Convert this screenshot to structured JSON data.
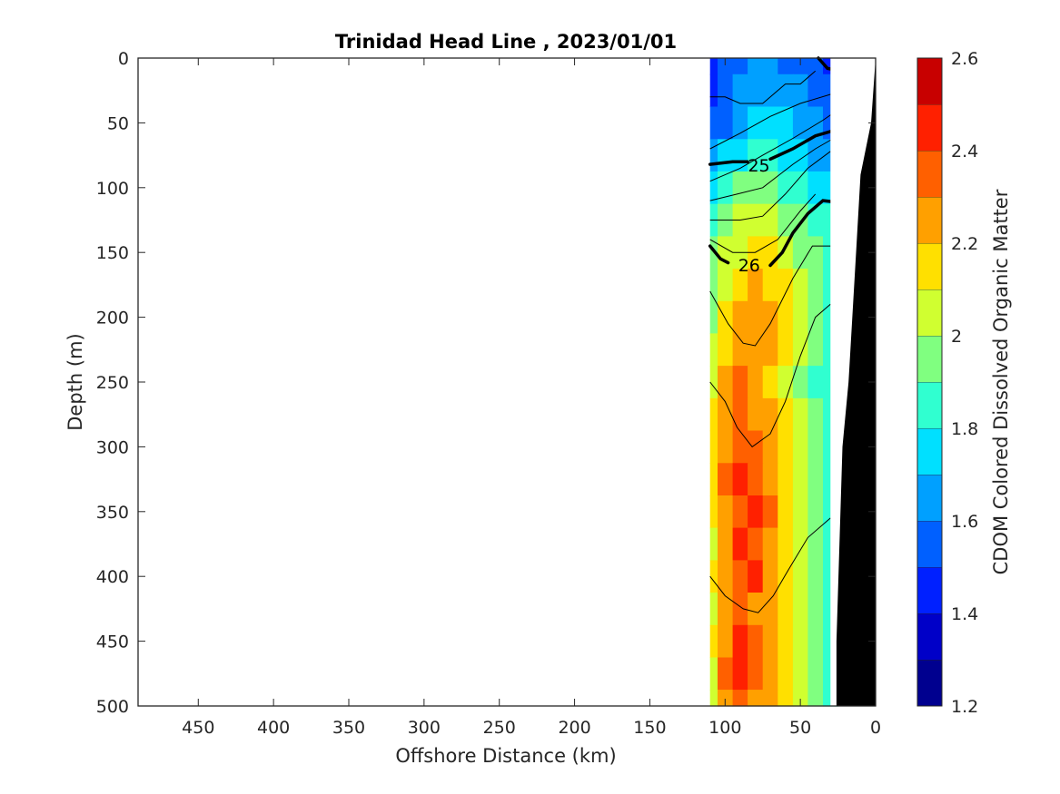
{
  "chart_data": {
    "type": "heatmap",
    "title": "Trinidad Head Line , 2023/01/01",
    "xlabel": "Offshore Distance (km)",
    "ylabel": "Depth (m)",
    "colorbar_label": "CDOM Colored Dissolved Organic Matter",
    "xlim": [
      490,
      0
    ],
    "x_reversed": true,
    "ylim": [
      0,
      500
    ],
    "y_reversed": true,
    "x_ticks": [
      "450",
      "400",
      "350",
      "300",
      "250",
      "200",
      "150",
      "100",
      "50",
      "0"
    ],
    "x_tick_values": [
      450,
      400,
      350,
      300,
      250,
      200,
      150,
      100,
      50,
      0
    ],
    "y_ticks": [
      "0",
      "50",
      "100",
      "150",
      "200",
      "250",
      "300",
      "350",
      "400",
      "450",
      "500"
    ],
    "y_tick_values": [
      0,
      50,
      100,
      150,
      200,
      250,
      300,
      350,
      400,
      450,
      500
    ],
    "colorbar_ticks": [
      "1.2",
      "1.4",
      "1.6",
      "1.8",
      "2",
      "2.2",
      "2.4",
      "2.6"
    ],
    "colorbar_tick_values": [
      1.2,
      1.4,
      1.6,
      1.8,
      2.0,
      2.2,
      2.4,
      2.6
    ],
    "clim": [
      1.2,
      2.6
    ],
    "colorbar_levels": [
      1.2,
      1.3,
      1.4,
      1.5,
      1.6,
      1.7,
      1.8,
      1.9,
      2.0,
      2.1,
      2.2,
      2.3,
      2.4,
      2.5,
      2.6
    ],
    "colormap": [
      "#00008f",
      "#0000c8",
      "#0020ff",
      "#0060ff",
      "#00a0ff",
      "#00e0ff",
      "#30ffd0",
      "#80ff80",
      "#d0ff30",
      "#ffe000",
      "#ffa000",
      "#ff6000",
      "#ff2000",
      "#c80000"
    ],
    "section_x_range": [
      110,
      20
    ],
    "distance_columns": [
      110,
      100,
      90,
      80,
      70,
      60,
      50,
      40,
      30,
      20
    ],
    "depth_rows": [
      0,
      25,
      50,
      75,
      100,
      125,
      150,
      175,
      200,
      225,
      250,
      275,
      300,
      325,
      350,
      375,
      400,
      425,
      450,
      475,
      500
    ],
    "cdom_values": [
      [
        1.45,
        1.5,
        1.55,
        1.6,
        1.62,
        1.58,
        1.55,
        1.5,
        1.45,
        1.45
      ],
      [
        1.45,
        1.52,
        1.6,
        1.65,
        1.68,
        1.65,
        1.6,
        1.55,
        1.5,
        1.45
      ],
      [
        1.5,
        1.55,
        1.62,
        1.7,
        1.72,
        1.7,
        1.65,
        1.6,
        1.55,
        1.5
      ],
      [
        1.6,
        1.7,
        1.78,
        1.82,
        1.8,
        1.78,
        1.72,
        1.68,
        1.65,
        1.6
      ],
      [
        1.75,
        1.85,
        1.92,
        1.95,
        1.92,
        1.88,
        1.82,
        1.78,
        1.75,
        1.7
      ],
      [
        1.85,
        1.95,
        2.02,
        2.05,
        2.02,
        1.98,
        1.92,
        1.85,
        1.8,
        1.75
      ],
      [
        1.9,
        2.0,
        2.08,
        2.12,
        2.1,
        2.05,
        1.98,
        1.9,
        1.82,
        null
      ],
      [
        1.95,
        2.05,
        2.15,
        2.2,
        2.18,
        2.1,
        2.0,
        1.92,
        1.85,
        null
      ],
      [
        1.95,
        2.1,
        2.2,
        2.25,
        2.22,
        2.12,
        2.02,
        1.92,
        1.82,
        null
      ],
      [
        2.0,
        2.15,
        2.25,
        2.22,
        2.2,
        2.1,
        2.0,
        1.9,
        1.8,
        null
      ],
      [
        2.05,
        2.2,
        2.3,
        2.25,
        2.18,
        2.08,
        1.98,
        1.88,
        1.8,
        null
      ],
      [
        2.1,
        2.25,
        2.35,
        2.28,
        2.2,
        2.1,
        2.0,
        1.9,
        1.82,
        null
      ],
      [
        2.15,
        2.28,
        2.3,
        2.32,
        2.22,
        2.12,
        2.02,
        1.92,
        1.82,
        null
      ],
      [
        2.1,
        2.3,
        2.42,
        2.38,
        2.28,
        2.15,
        2.05,
        1.95,
        1.85,
        null
      ],
      [
        2.12,
        2.28,
        2.35,
        2.42,
        2.3,
        2.18,
        2.05,
        1.95,
        1.85,
        null
      ],
      [
        2.08,
        2.22,
        2.4,
        2.3,
        2.22,
        2.12,
        2.0,
        1.92,
        1.82,
        null
      ],
      [
        2.1,
        2.25,
        2.32,
        2.42,
        2.28,
        2.15,
        2.02,
        1.92,
        1.85,
        null
      ],
      [
        2.05,
        2.2,
        2.3,
        2.28,
        2.2,
        2.1,
        2.0,
        1.9,
        1.82,
        null
      ],
      [
        2.1,
        2.28,
        2.42,
        2.32,
        2.25,
        2.12,
        2.02,
        1.92,
        1.85,
        null
      ],
      [
        2.08,
        2.3,
        2.4,
        2.35,
        2.28,
        2.15,
        2.05,
        1.95,
        1.85,
        null
      ],
      [
        2.05,
        2.2,
        2.3,
        2.28,
        2.22,
        2.12,
        2.02,
        1.92,
        1.85,
        null
      ]
    ],
    "contour_labels": [
      "25",
      "26"
    ]
  }
}
